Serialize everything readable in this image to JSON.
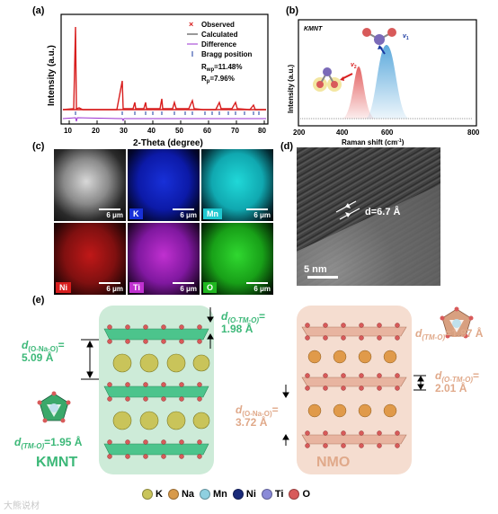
{
  "panel_labels": {
    "a": "(a)",
    "b": "(b)",
    "c": "(c)",
    "d": "(d)",
    "e": "(e)"
  },
  "panel_a": {
    "xlabel": "2-Theta (degree)",
    "ylabel": "Intensity (a.u.)",
    "xticks": [
      "10",
      "20",
      "30",
      "40",
      "50",
      "60",
      "70",
      "80"
    ],
    "legend": [
      "Observed",
      "Calculated",
      "Difference",
      "Bragg position"
    ],
    "rwp": "R",
    "rwp_sub": "wp",
    "rwp_val": "=11.48%",
    "rp": "R",
    "rp_sub": "p",
    "rp_val": "=7.96%"
  },
  "panel_b": {
    "title": "KMNT",
    "xlabel": "Raman shift (cm",
    "xlabel_sup": "-1",
    "xlabel_end": ")",
    "ylabel": "Intensity (a.u.)",
    "xticks": [
      "200",
      "400",
      "600",
      "800"
    ],
    "nu2": "v",
    "nu2_sub": "2",
    "nu1": "v",
    "nu1_sub": "1"
  },
  "panel_c": {
    "tiles": [
      {
        "label": "",
        "scale": "6 μm"
      },
      {
        "label": "K",
        "scale": "6 μm"
      },
      {
        "label": "Mn",
        "scale": "6 μm"
      },
      {
        "label": "Ni",
        "scale": "6 μm"
      },
      {
        "label": "Ti",
        "scale": "6 μm"
      },
      {
        "label": "O",
        "scale": "6 μm"
      }
    ]
  },
  "panel_d": {
    "dspacing": "d=6.7 Å",
    "scale": "5 nm"
  },
  "panel_e": {
    "kmnt_name": "KMNT",
    "nmo_name": "NMO",
    "d_ona_left_label": "d",
    "d_ona_left_sub": "(O-Na-O)",
    "d_ona_left_val": "=",
    "d_ona_left_num": "5.09 Å",
    "d_otmo_mid_label": "d",
    "d_otmo_mid_sub": "(O-TM-O)",
    "d_otmo_mid_val": "=",
    "d_otmo_mid_num": "1.98 Å",
    "d_tmo_left": "d",
    "d_tmo_left_sub": "(TM-O)",
    "d_tmo_left_val": "=1.95 Å",
    "d_tmo_right": "d",
    "d_tmo_right_sub": "(TM-O)",
    "d_tmo_right_val": "=1.97 Å",
    "d_otmo_right": "d",
    "d_otmo_right_sub": "(O-TM-O)",
    "d_otmo_right_val": "=",
    "d_otmo_right_num": "2.01 Å",
    "d_ona_right": "d",
    "d_ona_right_sub": "(O-Na-O)",
    "d_ona_right_val": "=",
    "d_ona_right_num": "3.72 Å"
  },
  "element_legend": [
    {
      "name": "K",
      "color": "#c9c45a"
    },
    {
      "name": "Na",
      "color": "#d89a4a"
    },
    {
      "name": "Mn",
      "color": "#8fd0e0"
    },
    {
      "name": "Ni",
      "color": "#1a2a7a"
    },
    {
      "name": "Ti",
      "color": "#8a8ad8"
    },
    {
      "name": "O",
      "color": "#d85a5a"
    }
  ],
  "watermark": "大熊说材",
  "colors": {
    "observed": "#d81e1e",
    "calculated": "#333333",
    "difference": "#9b30d0",
    "bragg": "#1a3aa0",
    "kmnt": "#3cb878",
    "nmo": "#e0a98a",
    "raman_red": "#e05050",
    "raman_blue": "#4aa0d8"
  }
}
